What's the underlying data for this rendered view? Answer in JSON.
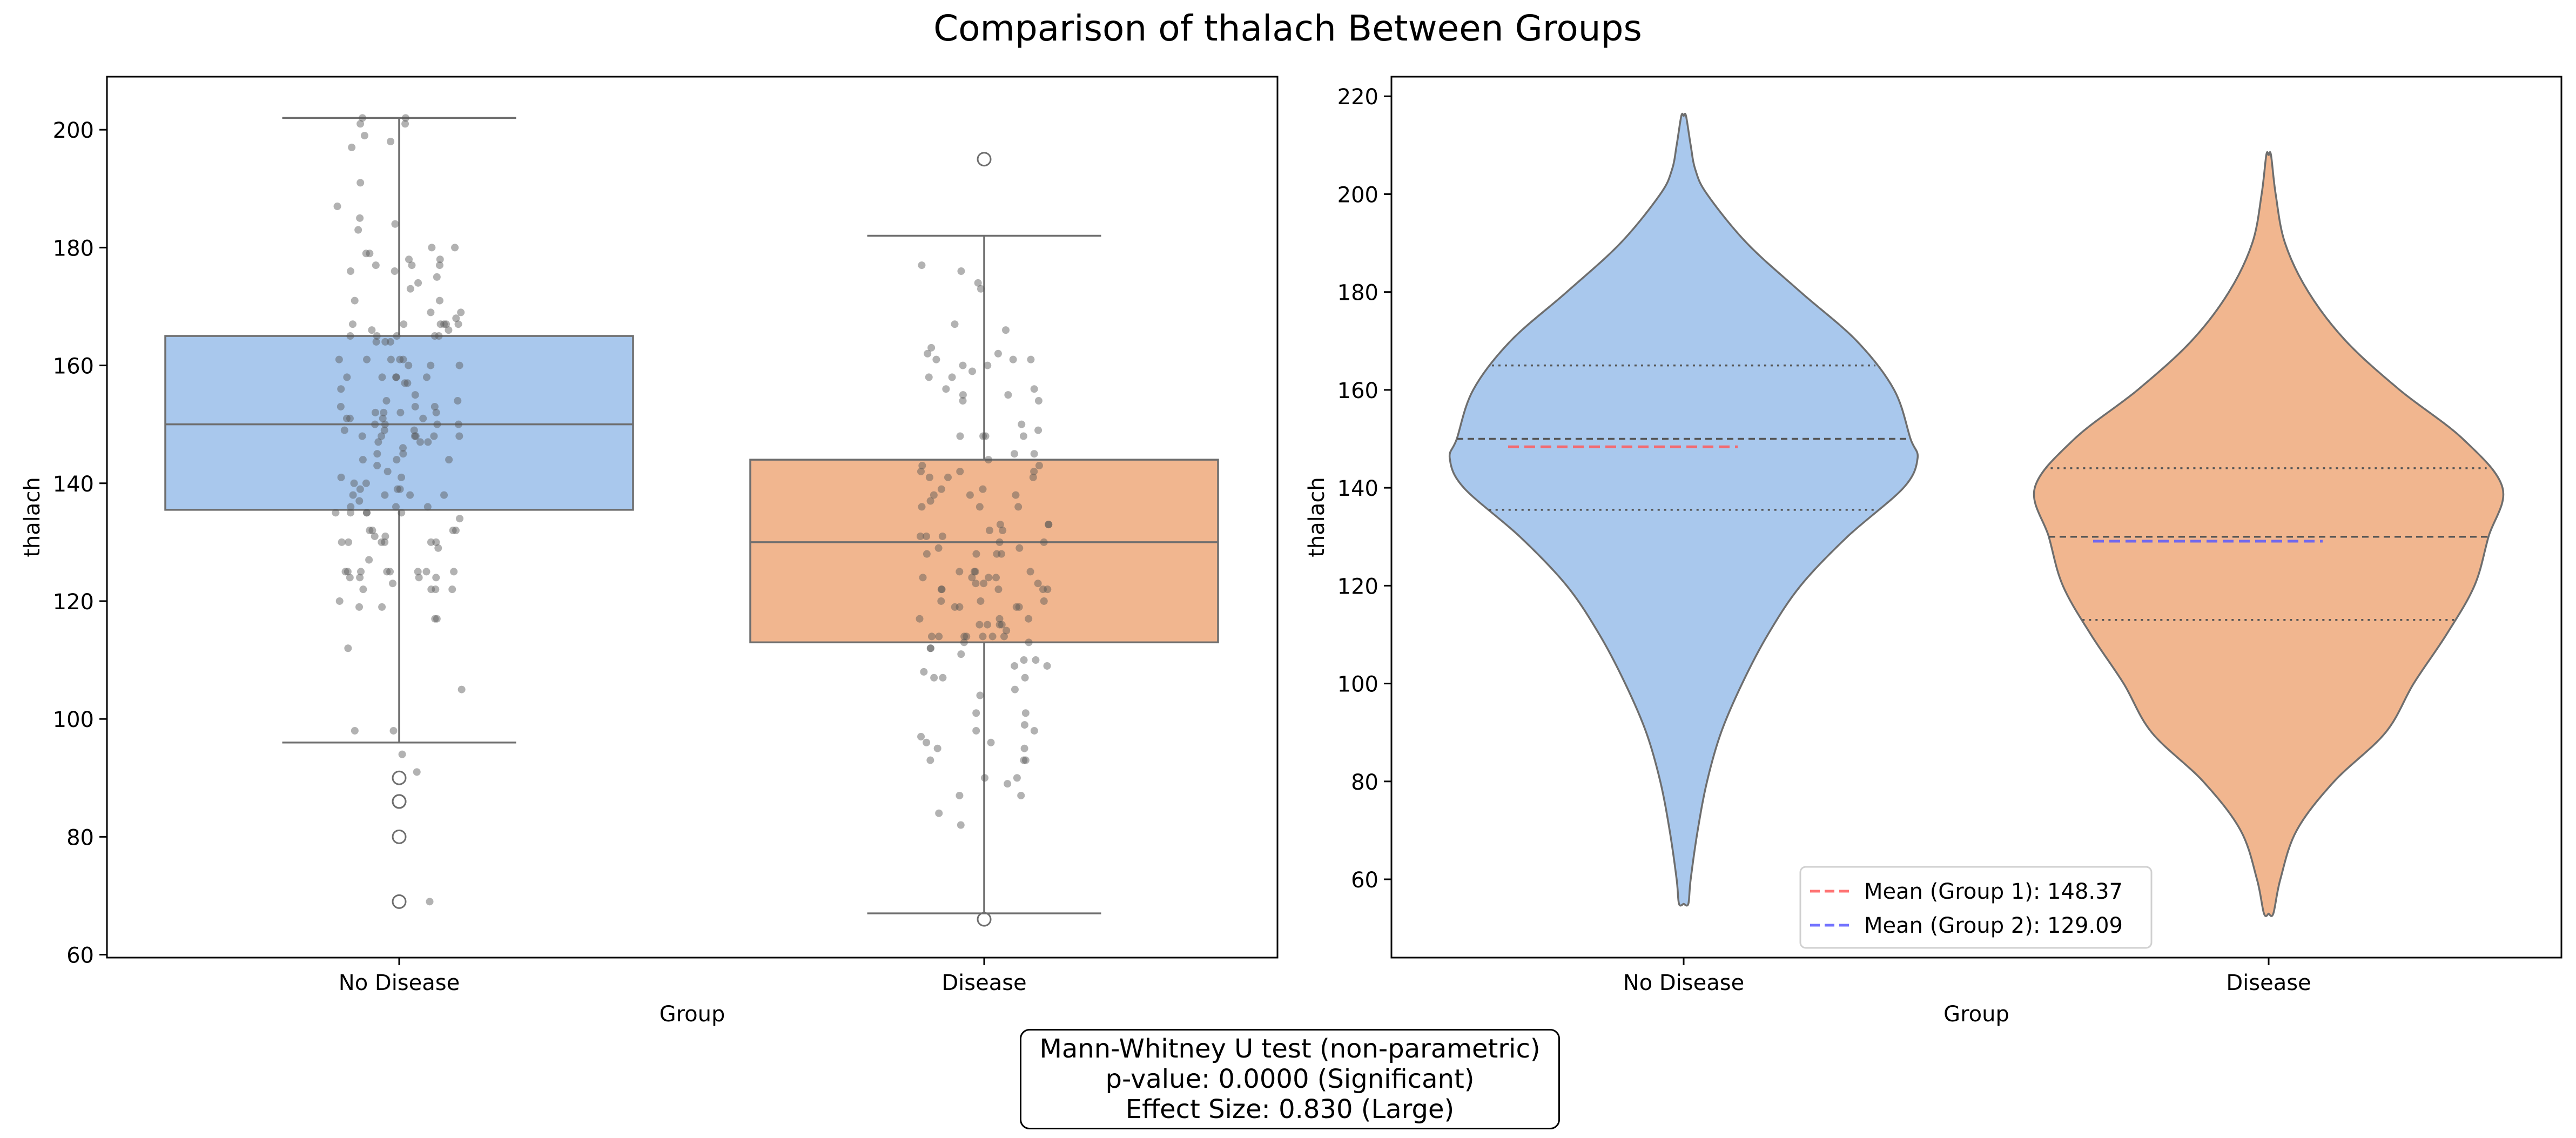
{
  "figure": {
    "title": "Comparison of thalach Between Groups"
  },
  "colors": {
    "no_disease": "#a9c8ed",
    "disease": "#f1b68f",
    "edge": "#6e6e6e",
    "jitter": "#555555",
    "mean_group1": "#ff5a5a",
    "mean_group2": "#5a5aff"
  },
  "chart_data": [
    {
      "type": "box",
      "xlabel": "Group",
      "ylabel": "thalach",
      "categories": [
        "No Disease",
        "Disease"
      ],
      "ylim": [
        59.5,
        209
      ],
      "yticks": [
        60,
        80,
        100,
        120,
        140,
        160,
        180,
        200
      ],
      "series": [
        {
          "category": "No Disease",
          "whisker_low": 96,
          "q1": 135.5,
          "median": 150,
          "q3": 165,
          "whisker_high": 202,
          "outliers": [
            90,
            86,
            86,
            80,
            69
          ]
        },
        {
          "category": "Disease",
          "whisker_low": 67,
          "q1": 113,
          "median": 130,
          "q3": 144,
          "whisker_high": 182,
          "outliers": [
            195,
            66
          ]
        }
      ],
      "points_overlay": true
    },
    {
      "type": "violin",
      "xlabel": "Group",
      "ylabel": "thalach",
      "categories": [
        "No Disease",
        "Disease"
      ],
      "ylim": [
        44,
        224
      ],
      "yticks": [
        60,
        80,
        100,
        120,
        140,
        160,
        180,
        200,
        220
      ],
      "series": [
        {
          "category": "No Disease",
          "min": 55,
          "max": 216,
          "q1": 135.5,
          "median": 150,
          "q3": 165,
          "mean": 148.37,
          "density": [
            [
              55,
              0.02
            ],
            [
              60,
              0.03
            ],
            [
              70,
              0.06
            ],
            [
              80,
              0.1
            ],
            [
              90,
              0.16
            ],
            [
              100,
              0.25
            ],
            [
              110,
              0.36
            ],
            [
              120,
              0.5
            ],
            [
              130,
              0.7
            ],
            [
              140,
              0.94
            ],
            [
              146,
              1.0
            ],
            [
              150,
              0.97
            ],
            [
              160,
              0.9
            ],
            [
              170,
              0.74
            ],
            [
              180,
              0.5
            ],
            [
              190,
              0.27
            ],
            [
              200,
              0.1
            ],
            [
              205,
              0.05
            ],
            [
              210,
              0.03
            ],
            [
              216,
              0.01
            ]
          ]
        },
        {
          "category": "Disease",
          "min": 53,
          "max": 208,
          "q1": 113,
          "median": 130,
          "q3": 144,
          "mean": 129.09,
          "density": [
            [
              53,
              0.02
            ],
            [
              60,
              0.05
            ],
            [
              70,
              0.12
            ],
            [
              80,
              0.28
            ],
            [
              90,
              0.5
            ],
            [
              100,
              0.62
            ],
            [
              110,
              0.76
            ],
            [
              120,
              0.88
            ],
            [
              130,
              0.94
            ],
            [
              140,
              1.0
            ],
            [
              150,
              0.83
            ],
            [
              160,
              0.56
            ],
            [
              170,
              0.33
            ],
            [
              180,
              0.17
            ],
            [
              190,
              0.07
            ],
            [
              200,
              0.03
            ],
            [
              208,
              0.01
            ]
          ]
        }
      ],
      "legend": {
        "position": "lower center",
        "entries": [
          "Mean (Group 1): 148.37",
          "Mean (Group 2): 129.09"
        ]
      }
    }
  ],
  "stats_box": {
    "line1": "Mann-Whitney U test (non-parametric)",
    "line2": "p-value: 0.0000 (Significant)",
    "line3": "Effect Size: 0.830 (Large)"
  }
}
